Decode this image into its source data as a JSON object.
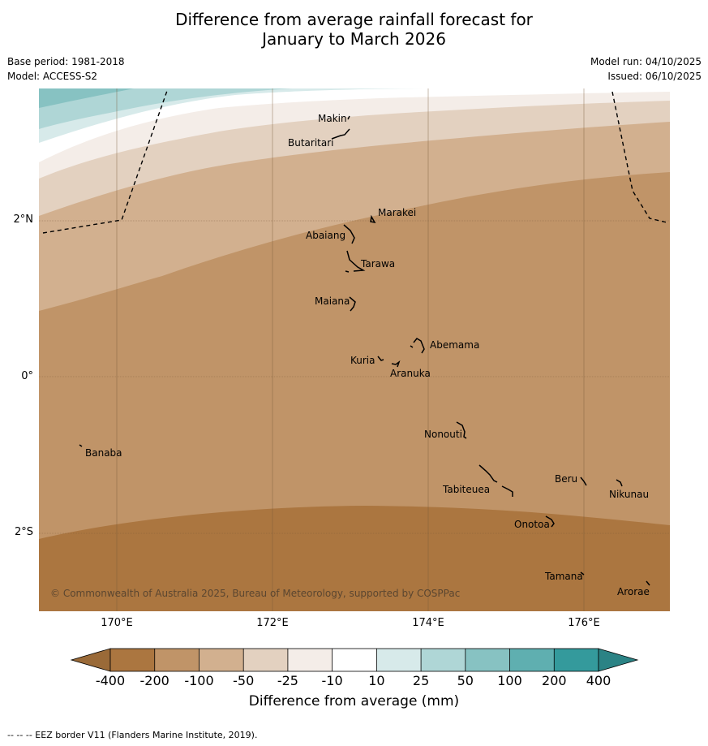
{
  "header": {
    "title_line1": "Difference from average rainfall forecast for",
    "title_line2": "January to March 2026",
    "base_period": "Base period: 1981-2018",
    "model": "Model: ACCESS-S2",
    "model_run": "Model run: 04/10/2025",
    "issued": "Issued: 06/10/2025"
  },
  "map": {
    "lon_labels": [
      "170°E",
      "172°E",
      "174°E",
      "176°E"
    ],
    "lat_labels": [
      "2°N",
      "0°",
      "2°S"
    ],
    "copyright": "© Commonwealth of Australia 2025, Bureau of Meteorology, supported by COSPPac",
    "islands": [
      "Makin",
      "Butaritari",
      "Marakei",
      "Abaiang",
      "Tarawa",
      "Maiana",
      "Abemama",
      "Kuria",
      "Aranuka",
      "Nonouti",
      "Banaba",
      "Tabiteuea",
      "Beru",
      "Nikunau",
      "Onotoa",
      "Tamana",
      "Arorae"
    ]
  },
  "colorbar": {
    "ticks": [
      "-400",
      "-200",
      "-100",
      "-50",
      "-25",
      "-10",
      "10",
      "25",
      "50",
      "100",
      "200",
      "400"
    ],
    "colors": [
      "#ab7640",
      "#c09468",
      "#d2b08f",
      "#e3d1c0",
      "#f4ede8",
      "#ffffff",
      "#d7eaea",
      "#afd6d6",
      "#87c2c2",
      "#5fafb0",
      "#349a9c"
    ],
    "low_extend_color": "#9a6a38",
    "high_extend_color": "#2b8385",
    "title": "Difference from average (mm)"
  },
  "footnote": "--  --  -- EEZ border V11 (Flanders Marine Institute, 2019)."
}
